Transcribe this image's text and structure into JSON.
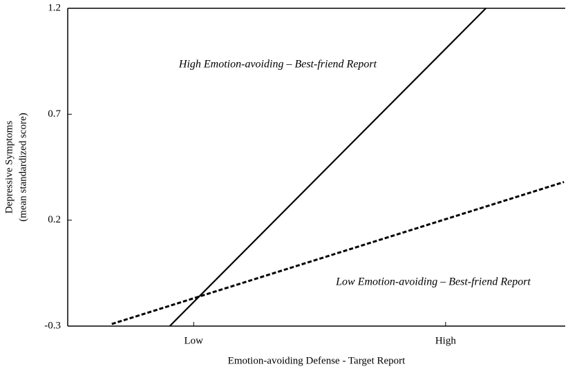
{
  "chart_data": {
    "type": "line",
    "xlabel": "Emotion-avoiding Defense - Target Report",
    "ylabel": [
      "Depressive Symptoms",
      "(mean standardized score)"
    ],
    "xlim": [
      -2.0,
      1.95
    ],
    "ylim": [
      -0.3,
      1.2
    ],
    "xticks": [
      {
        "value": -1,
        "label": "Low"
      },
      {
        "value": 1,
        "label": "High"
      }
    ],
    "yticks": [
      -0.3,
      0.2,
      0.7,
      1.2
    ],
    "series": [
      {
        "x": [
          -1.19,
          1.32
        ],
        "values": [
          -0.3,
          1.2
        ],
        "color": "#000000",
        "dash": "solid"
      },
      {
        "x": [
          -1.65,
          1.94
        ],
        "values": [
          -0.29,
          0.38
        ],
        "color": "#000000",
        "dash": "dashed"
      }
    ],
    "annotations": [
      "High Emotion-avoiding – Best-friend Report",
      "Low Emotion-avoiding – Best-friend Report"
    ]
  }
}
